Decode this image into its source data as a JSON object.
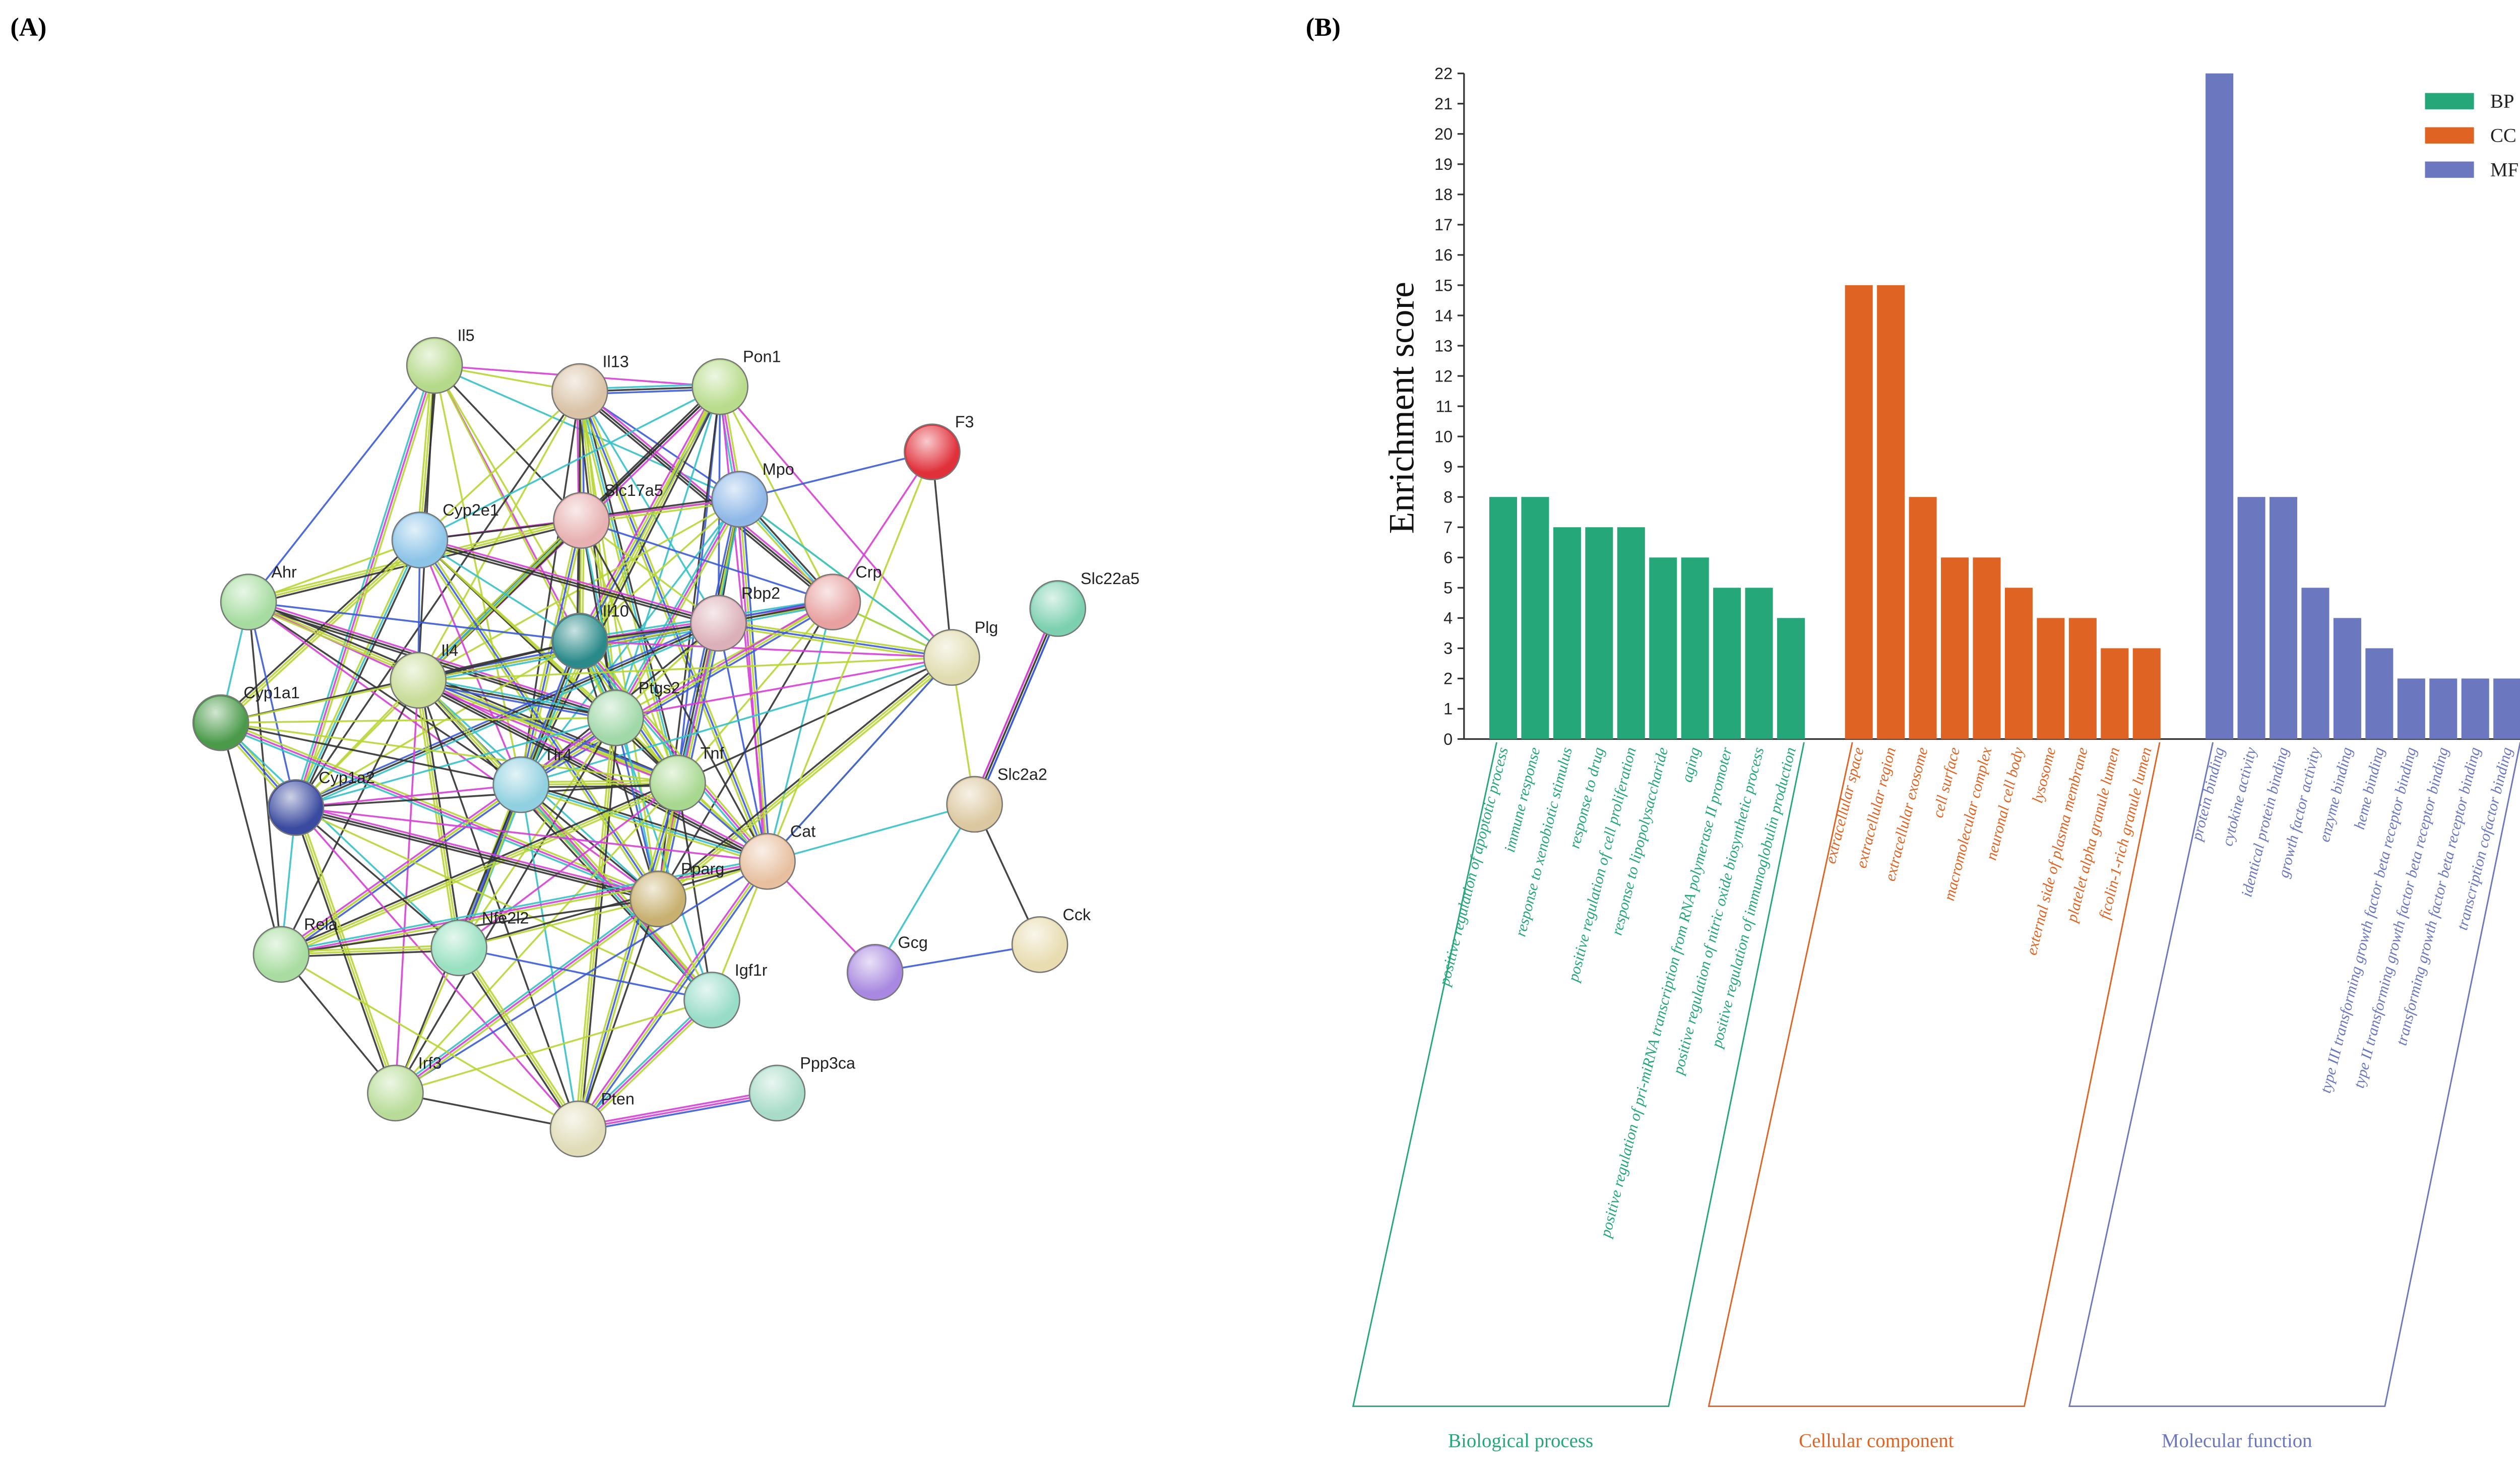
{
  "panels": [
    "(A)",
    "(B)"
  ],
  "network": {
    "nodes": [
      "Il5",
      "Il13",
      "Pon1",
      "F3",
      "Mpo",
      "Slc17a5",
      "Cyp2e1",
      "Ahr",
      "Crp",
      "Rbp2",
      "Il10",
      "Slc22a5",
      "Plg",
      "Il4",
      "Ptgs2",
      "Cyp1a1",
      "Tlr4",
      "Tnf",
      "Cyp1a2",
      "Slc2a2",
      "Cat",
      "Pparg",
      "Rela",
      "Nfe2l2",
      "Gcg",
      "Cck",
      "Igf1r",
      "Irf3",
      "Pten",
      "Ppp3ca"
    ]
  },
  "chart_data": {
    "type": "bar",
    "y_label": "Enrichment score",
    "ylim": [
      0,
      22
    ],
    "yticks": [
      0,
      1,
      2,
      3,
      4,
      5,
      6,
      7,
      8,
      9,
      10,
      11,
      12,
      13,
      14,
      15,
      16,
      17,
      18,
      19,
      20,
      21,
      22
    ],
    "legend": "top-right",
    "series": [
      {
        "name": "BP",
        "group_label": "Biological process",
        "color": "#26a77a",
        "categories": [
          "positive regulation of apoptotic process",
          "immune response",
          "response to xenobiotic stimulus",
          "response to drug",
          "positive regulation of cell proliferation",
          "response to lipopolysaccharide",
          "aging",
          "positive regulation of pri-miRNA transcription from RNA polymerase II promoter",
          "positive regulation of nitric oxide biosynthetic process",
          "positive regulation of immunoglobulin production"
        ],
        "values": [
          8,
          8,
          7,
          7,
          7,
          6,
          6,
          5,
          5,
          4
        ]
      },
      {
        "name": "CC",
        "group_label": "Cellular component",
        "color": "#df6423",
        "categories": [
          "extracellular space",
          "extracellular region",
          "extracellular exosome",
          "cell surface",
          "macromolecular complex",
          "neuronal cell body",
          "lysosome",
          "external side of plasma membrane",
          "platelet alpha granule lumen",
          "ficolin-1-rich granule lumen"
        ],
        "values": [
          15,
          15,
          8,
          6,
          6,
          5,
          4,
          4,
          3,
          3
        ]
      },
      {
        "name": "MF",
        "group_label": "Molecular function",
        "color": "#6b78c0",
        "categories": [
          "protein binding",
          "cytokine activity",
          "identical protein binding",
          "growth factor activity",
          "enzyme binding",
          "heme binding",
          "type III transforming growth factor beta receptor binding",
          "type II transforming growth factor beta receptor binding",
          "transforming growth factor beta receptor binding",
          "transcription cofactor binding"
        ],
        "values": [
          22,
          8,
          8,
          5,
          4,
          3,
          2,
          2,
          2,
          2
        ]
      }
    ]
  }
}
